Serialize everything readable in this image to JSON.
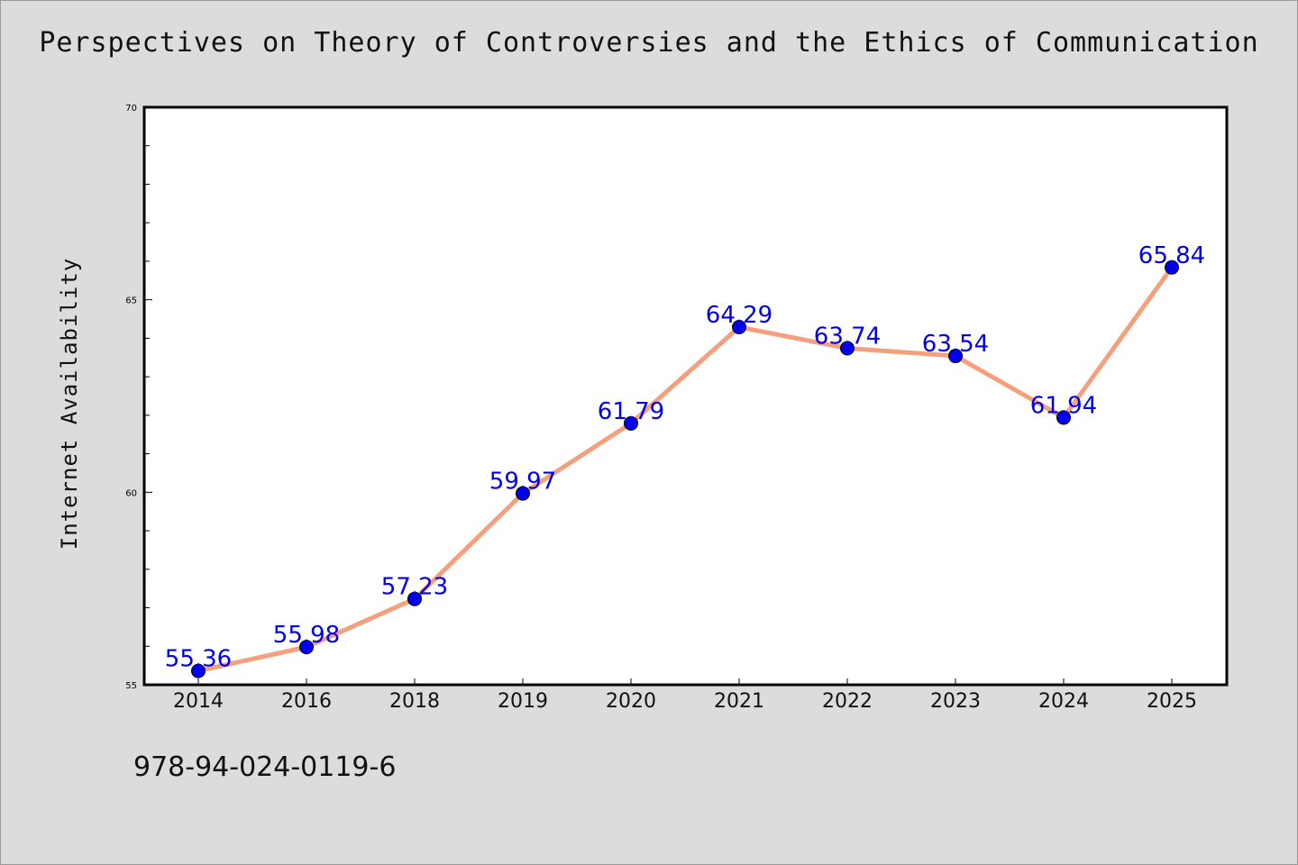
{
  "chart_data": {
    "type": "line",
    "title": "Perspectives on Theory of Controversies and the Ethics of Communication",
    "xlabel": "",
    "ylabel": "Internet Availability",
    "categories": [
      "2014",
      "2016",
      "2018",
      "2019",
      "2020",
      "2021",
      "2022",
      "2023",
      "2024",
      "2025"
    ],
    "series": [
      {
        "name": "",
        "values": [
          55.36,
          55.98,
          57.23,
          59.97,
          61.79,
          64.29,
          63.74,
          63.54,
          61.94,
          65.84
        ],
        "labels": [
          "55.36",
          "55.98",
          "57.23",
          "59.97",
          "61.79",
          "64.29",
          "63.74",
          "63.54",
          "61.94",
          "65.84"
        ]
      }
    ],
    "ylim": [
      55,
      70
    ],
    "yticks": [
      "55",
      "60",
      "65",
      "70"
    ],
    "grid": false,
    "colors": {
      "line": "#f4a07e",
      "marker": "#0000ee",
      "label": "#0000ee"
    }
  },
  "footer_text": "978-94-024-0119-6"
}
